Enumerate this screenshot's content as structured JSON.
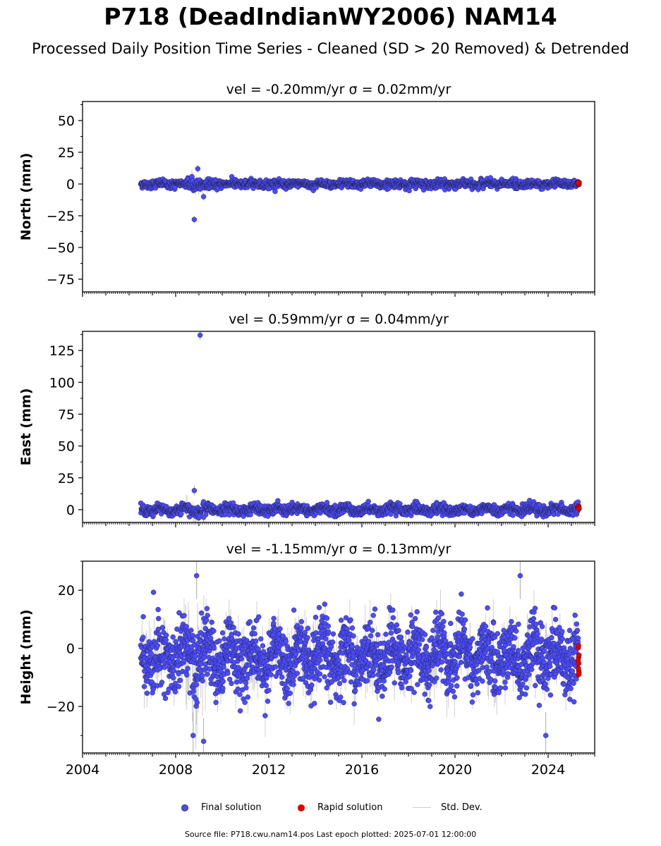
{
  "title": "P718 (DeadIndianWY2006) NAM14",
  "subtitle": "Processed Daily Position Time Series - Cleaned (SD > 20 Removed) & Detrended",
  "chart_data": [
    {
      "type": "scatter",
      "component": "north",
      "title": "vel = -0.20mm/yr   σ = 0.02mm/yr",
      "ylabel": "North (mm)",
      "ylim": [
        -85,
        65
      ],
      "yticks": [
        50,
        25,
        0,
        -25,
        -50,
        -75
      ],
      "ytick_labels": [
        "50",
        "25",
        "0",
        "−25",
        "−50",
        "−75"
      ],
      "xlim": [
        2004.0,
        2026.0
      ],
      "noise_sd": 1.6,
      "seasonal_amp": 0.6,
      "err_sd": 3,
      "outliers": [
        {
          "x": 2008.8,
          "y": -28
        },
        {
          "x": 2008.95,
          "y": 12
        },
        {
          "x": 2009.2,
          "y": -10
        }
      ],
      "rapid_range": [
        -1,
        2
      ]
    },
    {
      "type": "scatter",
      "component": "east",
      "title": "vel = 0.59mm/yr   σ = 0.04mm/yr",
      "ylabel": "East (mm)",
      "ylim": [
        -10,
        140
      ],
      "yticks": [
        125,
        100,
        75,
        50,
        25,
        0
      ],
      "ytick_labels": [
        "125",
        "100",
        "75",
        "50",
        "25",
        "0"
      ],
      "xlim": [
        2004.0,
        2026.0
      ],
      "noise_sd": 2.0,
      "seasonal_amp": 1.5,
      "err_sd": 4,
      "outliers": [
        {
          "x": 2009.05,
          "y": 137
        },
        {
          "x": 2008.8,
          "y": 15
        },
        {
          "x": 2009.2,
          "y": -6
        }
      ],
      "rapid_range": [
        0,
        3
      ]
    },
    {
      "type": "scatter",
      "component": "height",
      "title": "vel = -1.15mm/yr   σ = 0.13mm/yr",
      "ylabel": "Height (mm)",
      "ylim": [
        -36,
        30
      ],
      "yticks": [
        20,
        0,
        -20
      ],
      "ytick_labels": [
        "20",
        "0",
        "−20"
      ],
      "xlim": [
        2004.0,
        2026.0
      ],
      "noise_sd": 5.5,
      "seasonal_amp": 4.0,
      "err_sd": 8,
      "outliers": [
        {
          "x": 2008.75,
          "y": -30
        },
        {
          "x": 2009.2,
          "y": -32
        },
        {
          "x": 2022.8,
          "y": 25
        },
        {
          "x": 2023.9,
          "y": -30
        },
        {
          "x": 2008.9,
          "y": 25
        }
      ],
      "rapid_range": [
        -10,
        3
      ]
    }
  ],
  "x_tick_labels": [
    "2004",
    "2008",
    "2012",
    "2016",
    "2020",
    "2024"
  ],
  "legend": {
    "final": "Final solution",
    "rapid": "Rapid solution",
    "std": "Std. Dev."
  },
  "colors": {
    "final": "#4b4bff",
    "rapid": "#e00000",
    "std": "#c8c8c8",
    "marker_edge": "#1a1a1a"
  },
  "footer": "Source file: P718.cwu.nam14.pos  Last epoch plotted: 2025-07-01 12:00:00"
}
